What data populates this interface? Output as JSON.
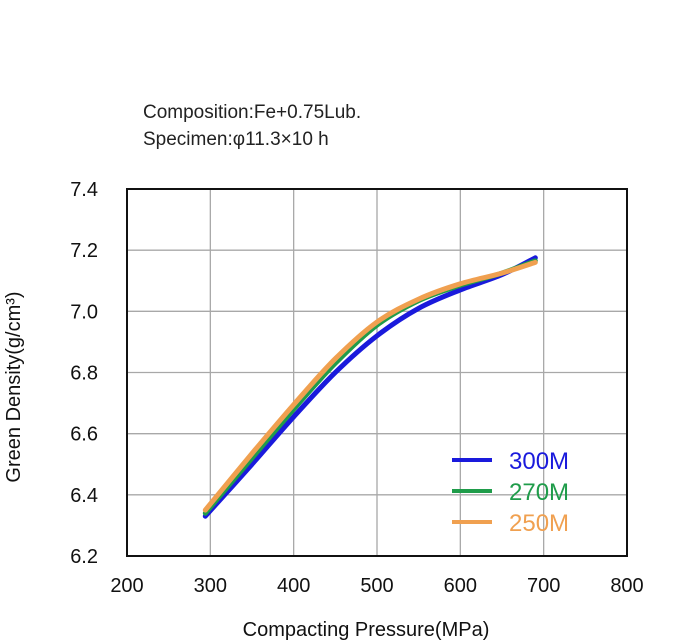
{
  "chart_data": {
    "type": "line",
    "notes": [
      "Composition:Fe+0.75Lub.",
      "Specimen:φ11.3×10 h"
    ],
    "xlabel": "Compacting Pressure(MPa)",
    "ylabel": "Green Density(g/cm³)",
    "xlim": [
      200,
      800
    ],
    "ylim": [
      6.2,
      7.4
    ],
    "xticks": [
      200,
      300,
      400,
      500,
      600,
      700,
      800
    ],
    "yticks": [
      6.2,
      6.4,
      6.6,
      6.8,
      7.0,
      7.2,
      7.4
    ],
    "xtick_labels": [
      "200",
      "300",
      "400",
      "500",
      "600",
      "700",
      "800"
    ],
    "ytick_labels": [
      "6.2",
      "6.4",
      "6.6",
      "6.8",
      "7.0",
      "7.2",
      "7.4"
    ],
    "grid": true,
    "legend_position": "bottom-right",
    "series": [
      {
        "name": "300M",
        "color": "#1a1adc",
        "x": [
          294,
          350,
          400,
          450,
          500,
          550,
          600,
          650,
          690
        ],
        "y": [
          6.33,
          6.5,
          6.655,
          6.8,
          6.92,
          7.01,
          7.07,
          7.12,
          7.175
        ]
      },
      {
        "name": "270M",
        "color": "#1f9c4a",
        "x": [
          294,
          350,
          400,
          450,
          500,
          550,
          600,
          650,
          690
        ],
        "y": [
          6.34,
          6.52,
          6.68,
          6.83,
          6.955,
          7.035,
          7.085,
          7.125,
          7.165
        ]
      },
      {
        "name": "250M",
        "color": "#f0a050",
        "x": [
          294,
          350,
          400,
          450,
          500,
          550,
          600,
          650,
          690
        ],
        "y": [
          6.35,
          6.535,
          6.695,
          6.845,
          6.965,
          7.04,
          7.09,
          7.125,
          7.16
        ]
      }
    ]
  }
}
